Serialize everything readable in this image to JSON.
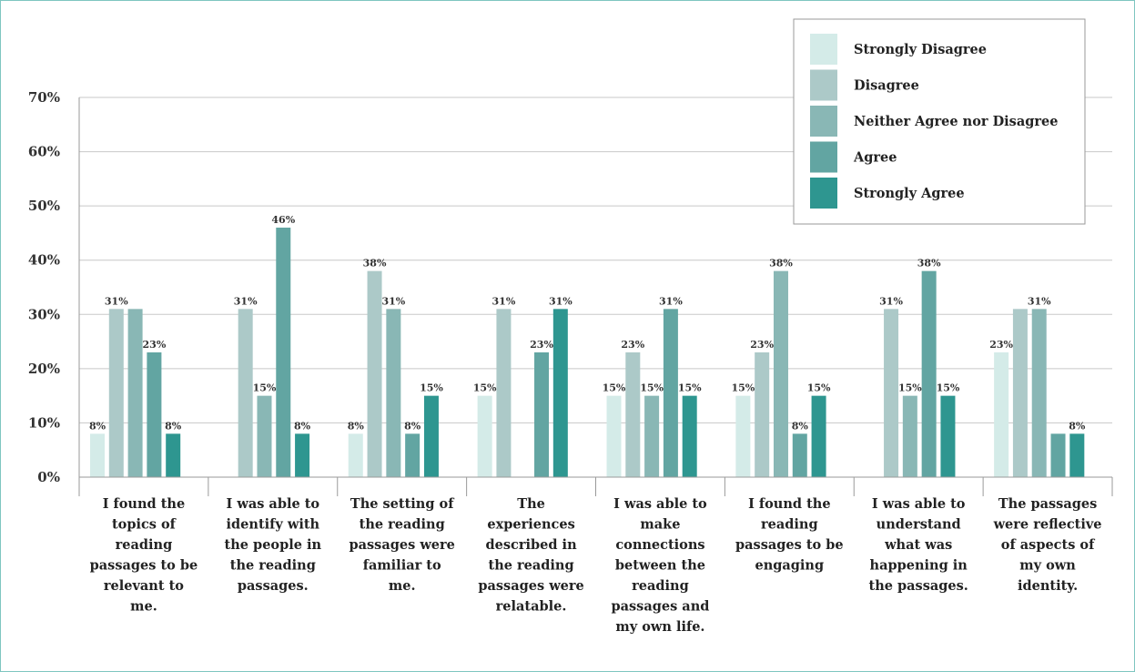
{
  "chart_data": {
    "type": "bar",
    "title": "",
    "xlabel": "",
    "ylabel": "",
    "ylim": [
      0,
      70
    ],
    "y_ticks": [
      "0%",
      "10%",
      "20%",
      "30%",
      "40%",
      "50%",
      "60%",
      "70%"
    ],
    "y_tick_values": [
      0,
      10,
      20,
      30,
      40,
      50,
      60,
      70
    ],
    "grid": true,
    "legend_position": "top-right",
    "categories": [
      [
        "I found the",
        "topics of",
        "reading",
        "passages to be",
        "relevant to",
        "me."
      ],
      [
        "I was able to",
        "identify with",
        "the people in",
        "the reading",
        "passages."
      ],
      [
        "The setting of",
        "the reading",
        "passages were",
        "familiar to",
        "me."
      ],
      [
        "The",
        "experiences",
        "described in",
        "the reading",
        "passages were",
        "relatable."
      ],
      [
        "I was able to",
        "make",
        "connections",
        "between the",
        "reading",
        "passages and",
        "my own life."
      ],
      [
        "I found the",
        "reading",
        "passages to be",
        "engaging"
      ],
      [
        "I was able to",
        "understand",
        "what was",
        "happening in",
        "the passages."
      ],
      [
        "The passages",
        "were reflective",
        "of aspects of",
        "my own",
        "identity."
      ]
    ],
    "series": [
      {
        "name": "Strongly Disagree",
        "color": "#d4ebe8",
        "values": [
          8,
          0,
          8,
          15,
          15,
          15,
          0,
          23
        ],
        "labels": [
          "8%",
          "",
          "8%",
          "15%",
          "15%",
          "15%",
          "",
          "23%"
        ]
      },
      {
        "name": "Disagree",
        "color": "#acc9c8",
        "values": [
          31,
          31,
          38,
          31,
          23,
          23,
          31,
          31
        ],
        "labels": [
          "31%",
          "31%",
          "38%",
          "31%",
          "23%",
          "23%",
          "31%",
          ""
        ]
      },
      {
        "name": "Neither Agree nor Disagree",
        "color": "#89b7b5",
        "values": [
          31,
          15,
          31,
          0,
          15,
          38,
          15,
          31
        ],
        "labels": [
          "",
          "15%",
          "31%",
          "",
          "15%",
          "38%",
          "15%",
          "31%"
        ]
      },
      {
        "name": "Agree",
        "color": "#62a5a2",
        "values": [
          23,
          46,
          8,
          23,
          31,
          8,
          38,
          8
        ],
        "labels": [
          "23%",
          "46%",
          "8%",
          "23%",
          "31%",
          "8%",
          "38%",
          ""
        ]
      },
      {
        "name": "Strongly Agree",
        "color": "#2e9690",
        "values": [
          8,
          8,
          15,
          31,
          15,
          15,
          15,
          8
        ],
        "labels": [
          "8%",
          "8%",
          "15%",
          "31%",
          "15%",
          "15%",
          "15%",
          "8%"
        ]
      }
    ]
  }
}
